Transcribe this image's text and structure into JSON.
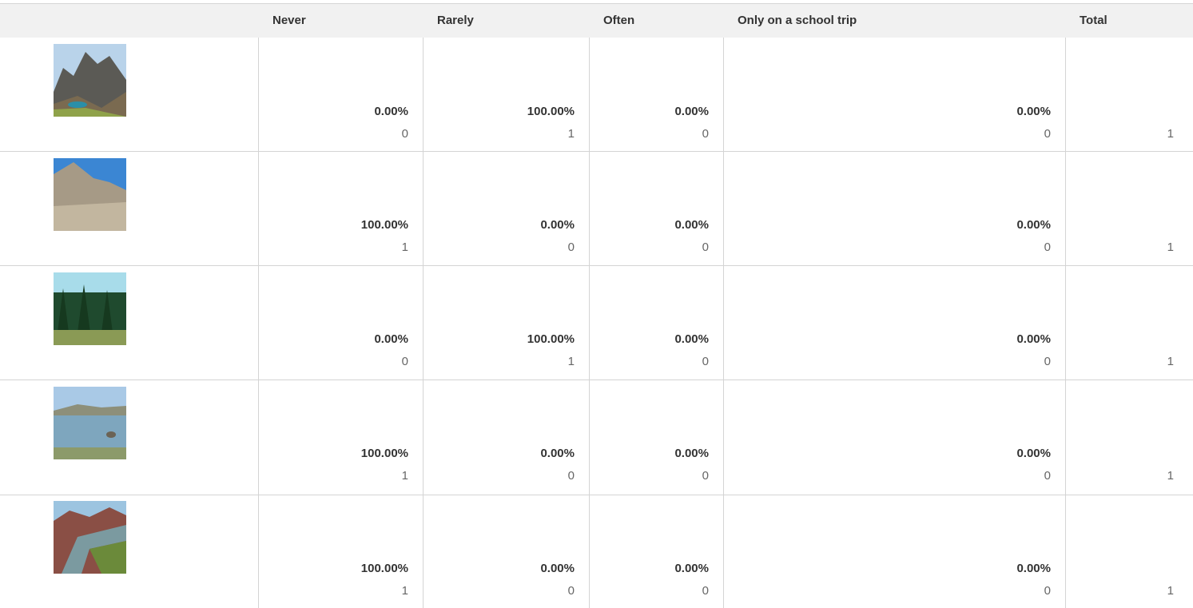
{
  "table": {
    "columns": [
      "Never",
      "Rarely",
      "Often",
      "Only on a school trip",
      "Total"
    ],
    "rows": [
      {
        "cells": [
          {
            "percent": "0.00%",
            "count": 0
          },
          {
            "percent": "100.00%",
            "count": 1
          },
          {
            "percent": "0.00%",
            "count": 0
          },
          {
            "percent": "0.00%",
            "count": 0
          }
        ],
        "total": 1
      },
      {
        "cells": [
          {
            "percent": "100.00%",
            "count": 1
          },
          {
            "percent": "0.00%",
            "count": 0
          },
          {
            "percent": "0.00%",
            "count": 0
          },
          {
            "percent": "0.00%",
            "count": 0
          }
        ],
        "total": 1
      },
      {
        "cells": [
          {
            "percent": "0.00%",
            "count": 0
          },
          {
            "percent": "100.00%",
            "count": 1
          },
          {
            "percent": "0.00%",
            "count": 0
          },
          {
            "percent": "0.00%",
            "count": 0
          }
        ],
        "total": 1
      },
      {
        "cells": [
          {
            "percent": "100.00%",
            "count": 1
          },
          {
            "percent": "0.00%",
            "count": 0
          },
          {
            "percent": "0.00%",
            "count": 0
          },
          {
            "percent": "0.00%",
            "count": 0
          }
        ],
        "total": 1
      },
      {
        "cells": [
          {
            "percent": "100.00%",
            "count": 1
          },
          {
            "percent": "0.00%",
            "count": 0
          },
          {
            "percent": "0.00%",
            "count": 0
          },
          {
            "percent": "0.00%",
            "count": 0
          }
        ],
        "total": 1
      }
    ]
  }
}
